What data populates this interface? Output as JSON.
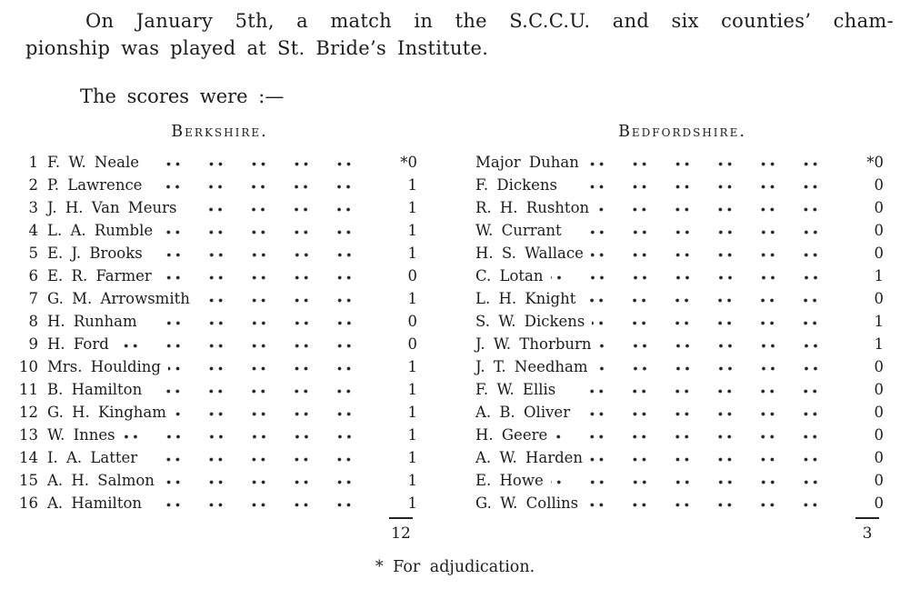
{
  "page": {
    "paper_color": "#ffffff",
    "ink_color": "#1b1b1b"
  },
  "intro": {
    "line1": "On January 5th, a match in the S.C.C.U. and six counties’ cham-",
    "line2": "pionship was played at St. Bride’s Institute.",
    "scores_label": "The scores were :—"
  },
  "match_table": {
    "berkshire": {
      "header": "Berkshire.",
      "rows": [
        {
          "no": "1",
          "name": "F. W. Neale",
          "score": "*0"
        },
        {
          "no": "2",
          "name": "P. Lawrence",
          "score": "1"
        },
        {
          "no": "3",
          "name": "J. H. Van Meurs",
          "score": "1"
        },
        {
          "no": "4",
          "name": "L. A. Rumble",
          "score": "1"
        },
        {
          "no": "5",
          "name": "E. J. Brooks",
          "score": "1"
        },
        {
          "no": "6",
          "name": "E. R. Farmer",
          "score": "0"
        },
        {
          "no": "7",
          "name": "G. M. Arrowsmith",
          "score": "1"
        },
        {
          "no": "8",
          "name": "H. Runham",
          "score": "0"
        },
        {
          "no": "9",
          "name": "H. Ford",
          "score": "0"
        },
        {
          "no": "10",
          "name": "Mrs. Houlding",
          "score": "1"
        },
        {
          "no": "11",
          "name": "B. Hamilton",
          "score": "1"
        },
        {
          "no": "12",
          "name": "G. H. Kingham",
          "score": "1"
        },
        {
          "no": "13",
          "name": "W. Innes",
          "score": "1"
        },
        {
          "no": "14",
          "name": "I. A. Latter",
          "score": "1"
        },
        {
          "no": "15",
          "name": "A. H. Salmon",
          "score": "1"
        },
        {
          "no": "16",
          "name": "A. Hamilton",
          "score": "1"
        }
      ],
      "total": "12"
    },
    "bedfordshire": {
      "header": "Bedfordshire.",
      "rows": [
        {
          "name": "Major Duhan",
          "score": "*0"
        },
        {
          "name": "F. Dickens",
          "score": "0"
        },
        {
          "name": "R. H. Rushton",
          "score": "0"
        },
        {
          "name": "W. Currant",
          "score": "0"
        },
        {
          "name": "H. S. Wallace",
          "score": "0"
        },
        {
          "name": "C. Lotan",
          "score": "1"
        },
        {
          "name": "L. H. Knight",
          "score": "0"
        },
        {
          "name": "S. W. Dickens",
          "score": "1"
        },
        {
          "name": "J. W. Thorburn",
          "score": "1"
        },
        {
          "name": "J. T. Needham",
          "score": "0"
        },
        {
          "name": "F. W. Ellis",
          "score": "0"
        },
        {
          "name": "A. B. Oliver",
          "score": "0"
        },
        {
          "name": "H. Geere",
          "score": "0"
        },
        {
          "name": "A. W. Harden",
          "score": "0"
        },
        {
          "name": "E. Howe",
          "score": "0"
        },
        {
          "name": "G. W. Collins",
          "score": "0"
        }
      ],
      "total": "3"
    },
    "footnote": "* For adjudication."
  }
}
